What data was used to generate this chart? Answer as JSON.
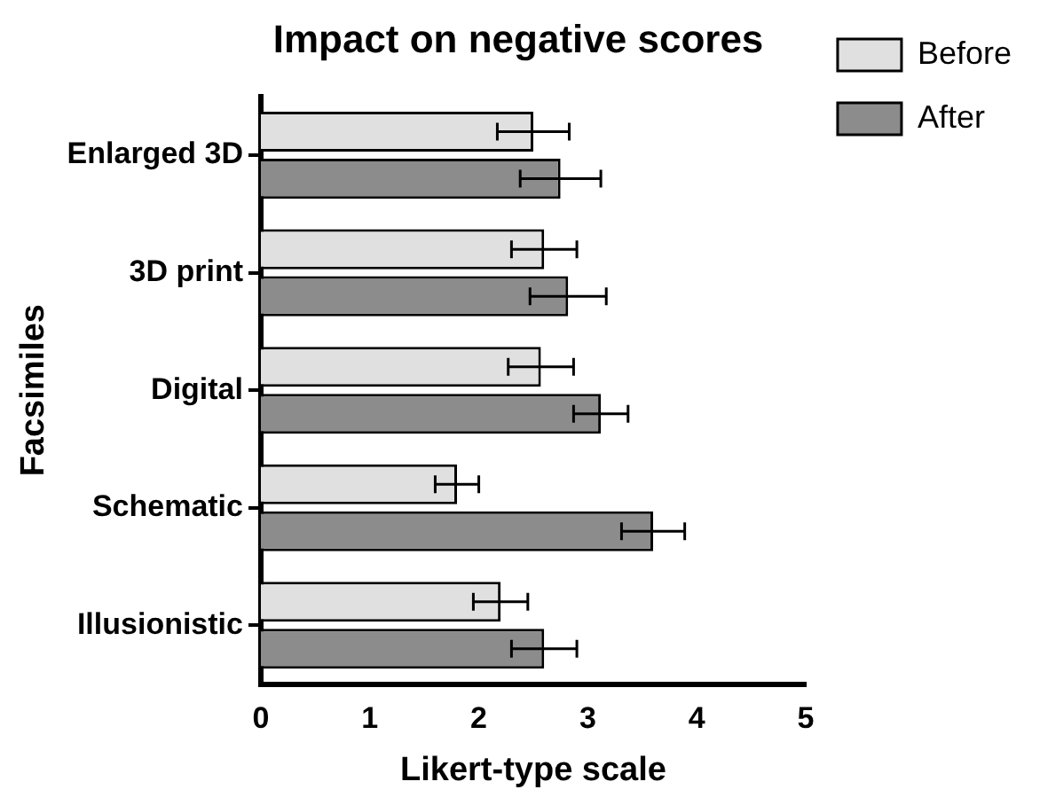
{
  "chart_data": {
    "type": "bar",
    "orientation": "horizontal",
    "title": "Impact on negative scores",
    "xlabel": "Likert-type scale",
    "ylabel": "Facsimiles",
    "categories": [
      "Enlarged 3D",
      "3D print",
      "Digital",
      "Schematic",
      "Illusionistic"
    ],
    "series": [
      {
        "name": "Before",
        "color": "#e0e0e0",
        "values": [
          2.5,
          2.6,
          2.57,
          1.8,
          2.2
        ],
        "errors": [
          0.33,
          0.3,
          0.3,
          0.2,
          0.25
        ]
      },
      {
        "name": "After",
        "color": "#8c8c8c",
        "values": [
          2.75,
          2.82,
          3.12,
          3.6,
          2.6
        ],
        "errors": [
          0.37,
          0.35,
          0.25,
          0.29,
          0.3
        ]
      }
    ],
    "xlim": [
      0,
      5
    ],
    "xticks": [
      0,
      1,
      2,
      3,
      4,
      5
    ],
    "grid": false,
    "legend": "top right"
  }
}
